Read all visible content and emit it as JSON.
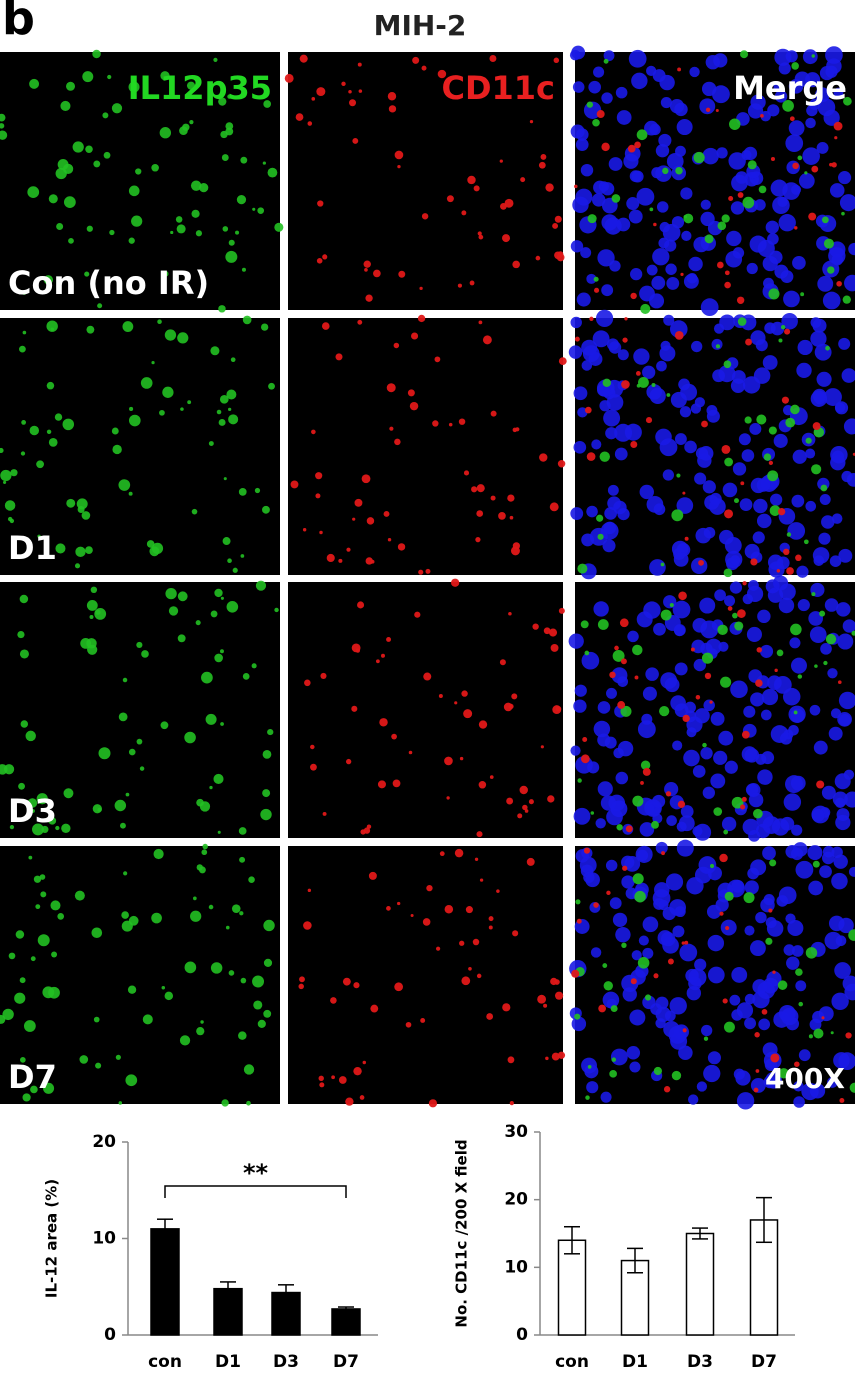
{
  "figure": {
    "panel_label": "b",
    "title": "MIH-2",
    "columns": [
      "IL12p35",
      "CD11c",
      "Merge"
    ],
    "rows": [
      "Con (no IR)",
      "D1",
      "D3",
      "D7"
    ],
    "magnification": "400X"
  },
  "chart_data": [
    {
      "type": "bar",
      "ylabel": "IL-12 area (%)",
      "categories": [
        "con",
        "D1",
        "D3",
        "D7"
      ],
      "values": [
        11,
        4.8,
        4.4,
        2.7
      ],
      "errors": [
        1,
        0.7,
        0.8,
        0.2
      ],
      "error_direction": "up",
      "color": "#000000",
      "edgecolor": "#000000",
      "ylim": [
        0,
        20
      ],
      "yticks": [
        0,
        10,
        20
      ],
      "annotation": "**"
    },
    {
      "type": "bar",
      "ylabel": "No. CD11c /200 X field",
      "categories": [
        "con",
        "D1",
        "D3",
        "D7"
      ],
      "values": [
        14,
        11,
        15,
        17
      ],
      "errors": [
        2,
        1.8,
        0.8,
        3.3
      ],
      "error_direction": "both",
      "color": "#ffffff",
      "edgecolor": "#000000",
      "ylim": [
        0,
        30
      ],
      "yticks": [
        0,
        10,
        20,
        30
      ]
    }
  ]
}
